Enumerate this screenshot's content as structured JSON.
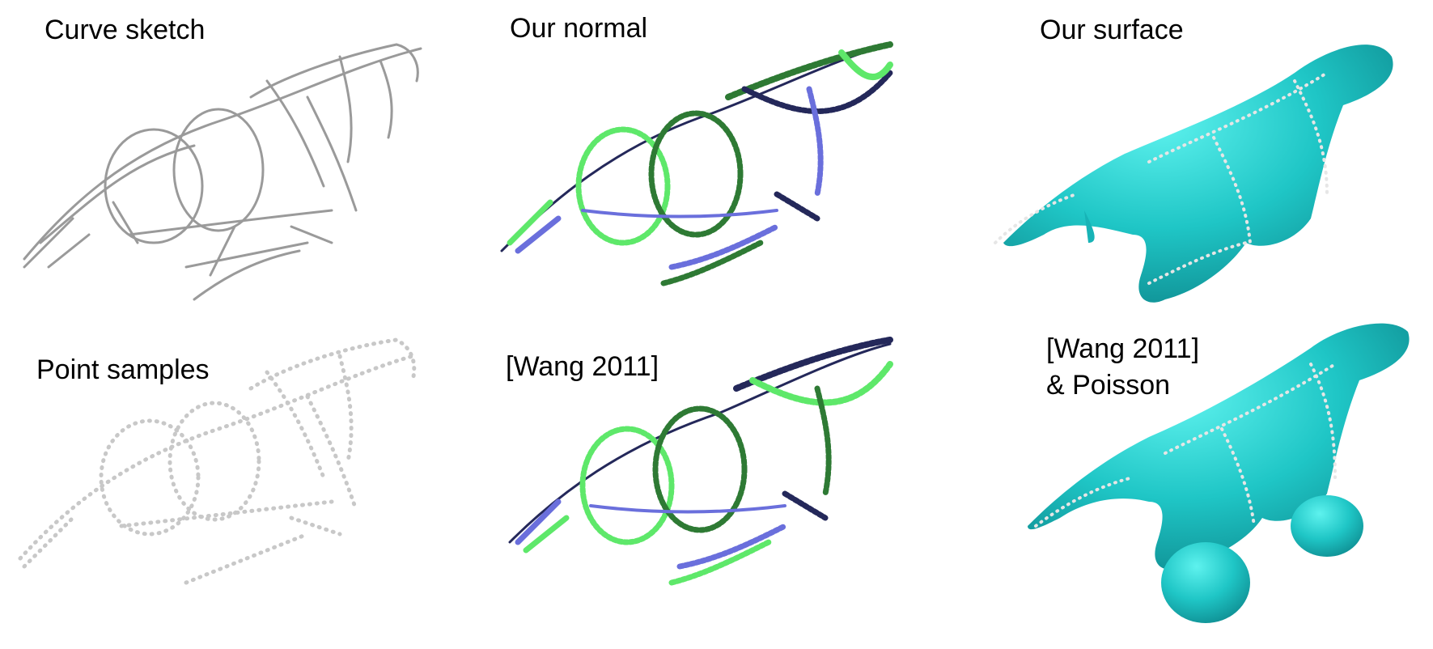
{
  "figure": {
    "panels": [
      {
        "id": "curve-sketch",
        "label": "Curve sketch",
        "style": "gray-strokes"
      },
      {
        "id": "our-normal",
        "label": "Our normal",
        "style": "colored-normals"
      },
      {
        "id": "our-surface",
        "label": "Our surface",
        "style": "teal-surface"
      },
      {
        "id": "point-samples",
        "label": "Point samples",
        "style": "gray-points"
      },
      {
        "id": "wang-normal",
        "label": "[Wang 2011]",
        "style": "colored-normals"
      },
      {
        "id": "wang-poisson",
        "label_lines": [
          "[Wang 2011]",
          "& Poisson"
        ],
        "style": "teal-surface-blobby"
      }
    ],
    "colors": {
      "stroke_gray": "#9a9a9a",
      "point_gray": "#c8c8c8",
      "navy": "#24285a",
      "periwinkle": "#6a6fdc",
      "light_green": "#5ee86a",
      "dark_green": "#2e7a34",
      "teal": "#1fc6c6",
      "teal_dark": "#0f9a9e"
    }
  }
}
